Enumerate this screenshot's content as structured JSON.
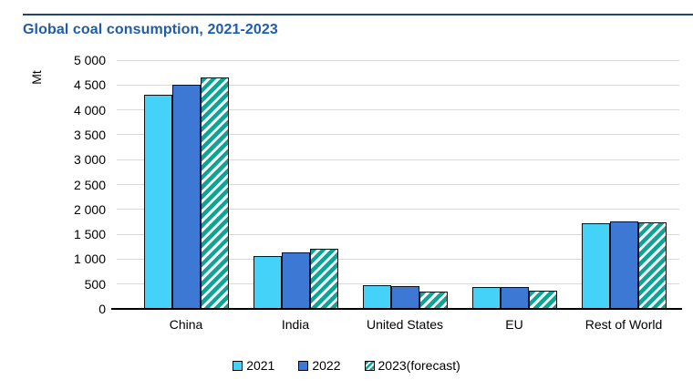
{
  "header": {
    "title": "Global coal consumption, 2021-2023"
  },
  "chart_data": {
    "type": "bar",
    "title": "Global coal consumption, 2021-2023",
    "ylabel": "Mt",
    "ylim": [
      0,
      5000
    ],
    "grid": true,
    "legend_position": "bottom-center",
    "categories": [
      "China",
      "India",
      "United States",
      "EU",
      "Rest of World"
    ],
    "series": [
      {
        "name": "2021",
        "pattern": "solid",
        "color": "#45D2F8",
        "values": [
          4300,
          1060,
          480,
          435,
          1730
        ]
      },
      {
        "name": "2022",
        "pattern": "solid",
        "color": "#3C78D4",
        "values": [
          4500,
          1130,
          450,
          440,
          1760
        ]
      },
      {
        "name": "2023(forecast)",
        "pattern": "diagonal-hatch",
        "color": "#0BA596",
        "values": [
          4660,
          1210,
          355,
          365,
          1740
        ]
      }
    ],
    "y_tick_values": [
      0,
      500,
      1000,
      1500,
      2000,
      2500,
      3000,
      3500,
      4000,
      4500,
      5000
    ],
    "y_tick_labels": [
      "0",
      "500",
      "1 000",
      "1 500",
      "2 000",
      "2 500",
      "3 000",
      "3 500",
      "4 000",
      "4 500",
      "5 000"
    ]
  },
  "colors": {
    "title_text": "#1F5CA9",
    "top_rule": "#1F4571",
    "gridline": "#D9D9D9",
    "axis_line": "#000000",
    "tick_text": "#000000",
    "hatch_background": "#FFFFFF"
  }
}
